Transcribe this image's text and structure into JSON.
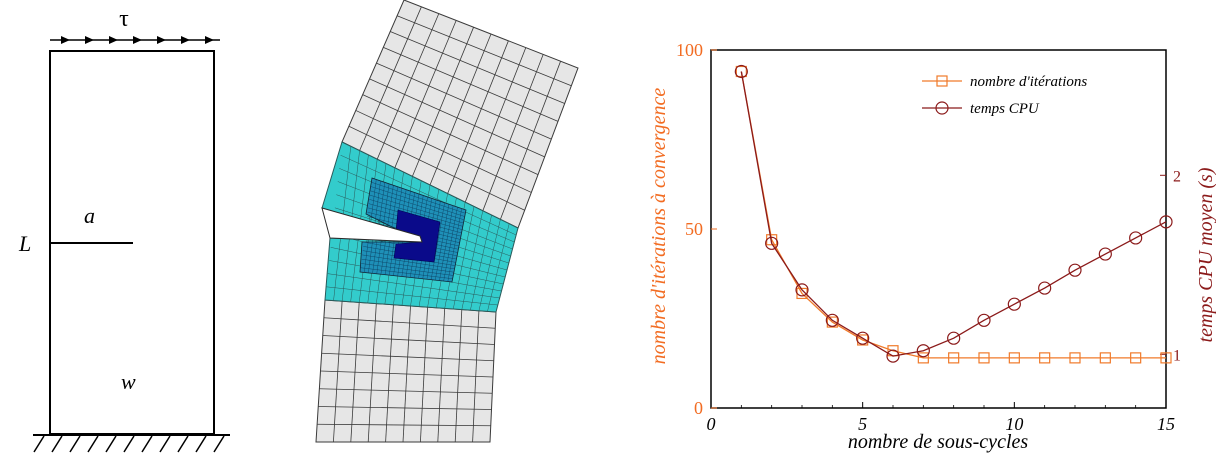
{
  "panel_a": {
    "tau": "τ",
    "L": "L",
    "a": "a",
    "w": "w"
  },
  "panel_b": {
    "colors": {
      "outer": "#e6e6e6",
      "ring1": "#33cccc",
      "ring2": "#1e90b8",
      "core": "#0a0a8a",
      "line": "#3a3a3a"
    }
  },
  "chart_data": {
    "type": "line",
    "xlabel": "nombre de sous-cycles",
    "ylabel_left": "nombre d'itérations à convergence",
    "ylabel_right": "temps CPU moyen (s)",
    "xlim": [
      0,
      15
    ],
    "ylim_left": [
      0,
      100
    ],
    "ylim_right": [
      0.7,
      2.7
    ],
    "x_ticks": [
      "0",
      "5",
      "10",
      "15"
    ],
    "y_left_ticks": [
      "0",
      "50",
      "100"
    ],
    "y_right_ticks": [
      "1",
      "2"
    ],
    "legend_position": "top-right",
    "colors": {
      "left_axis": "#f26c22",
      "right_axis": "#8b1a1a"
    },
    "series": [
      {
        "name": "nombre d'itérations",
        "marker": "square",
        "axis": "left",
        "color": "#f07a2a",
        "x": [
          1,
          2,
          3,
          4,
          5,
          6,
          7,
          8,
          9,
          10,
          11,
          12,
          13,
          14,
          15
        ],
        "values": [
          94,
          47,
          32,
          24,
          19,
          16,
          14,
          14,
          14,
          14,
          14,
          14,
          14,
          14,
          14
        ]
      },
      {
        "name": "temps CPU",
        "marker": "circle",
        "axis": "right",
        "color": "#8b1a1a",
        "x": [
          1,
          2,
          3,
          4,
          5,
          6,
          7,
          8,
          9,
          10,
          11,
          12,
          13,
          14,
          15
        ],
        "values": [
          2.58,
          1.62,
          1.36,
          1.19,
          1.09,
          0.99,
          1.02,
          1.09,
          1.19,
          1.28,
          1.37,
          1.47,
          1.56,
          1.65,
          1.74
        ]
      }
    ]
  }
}
